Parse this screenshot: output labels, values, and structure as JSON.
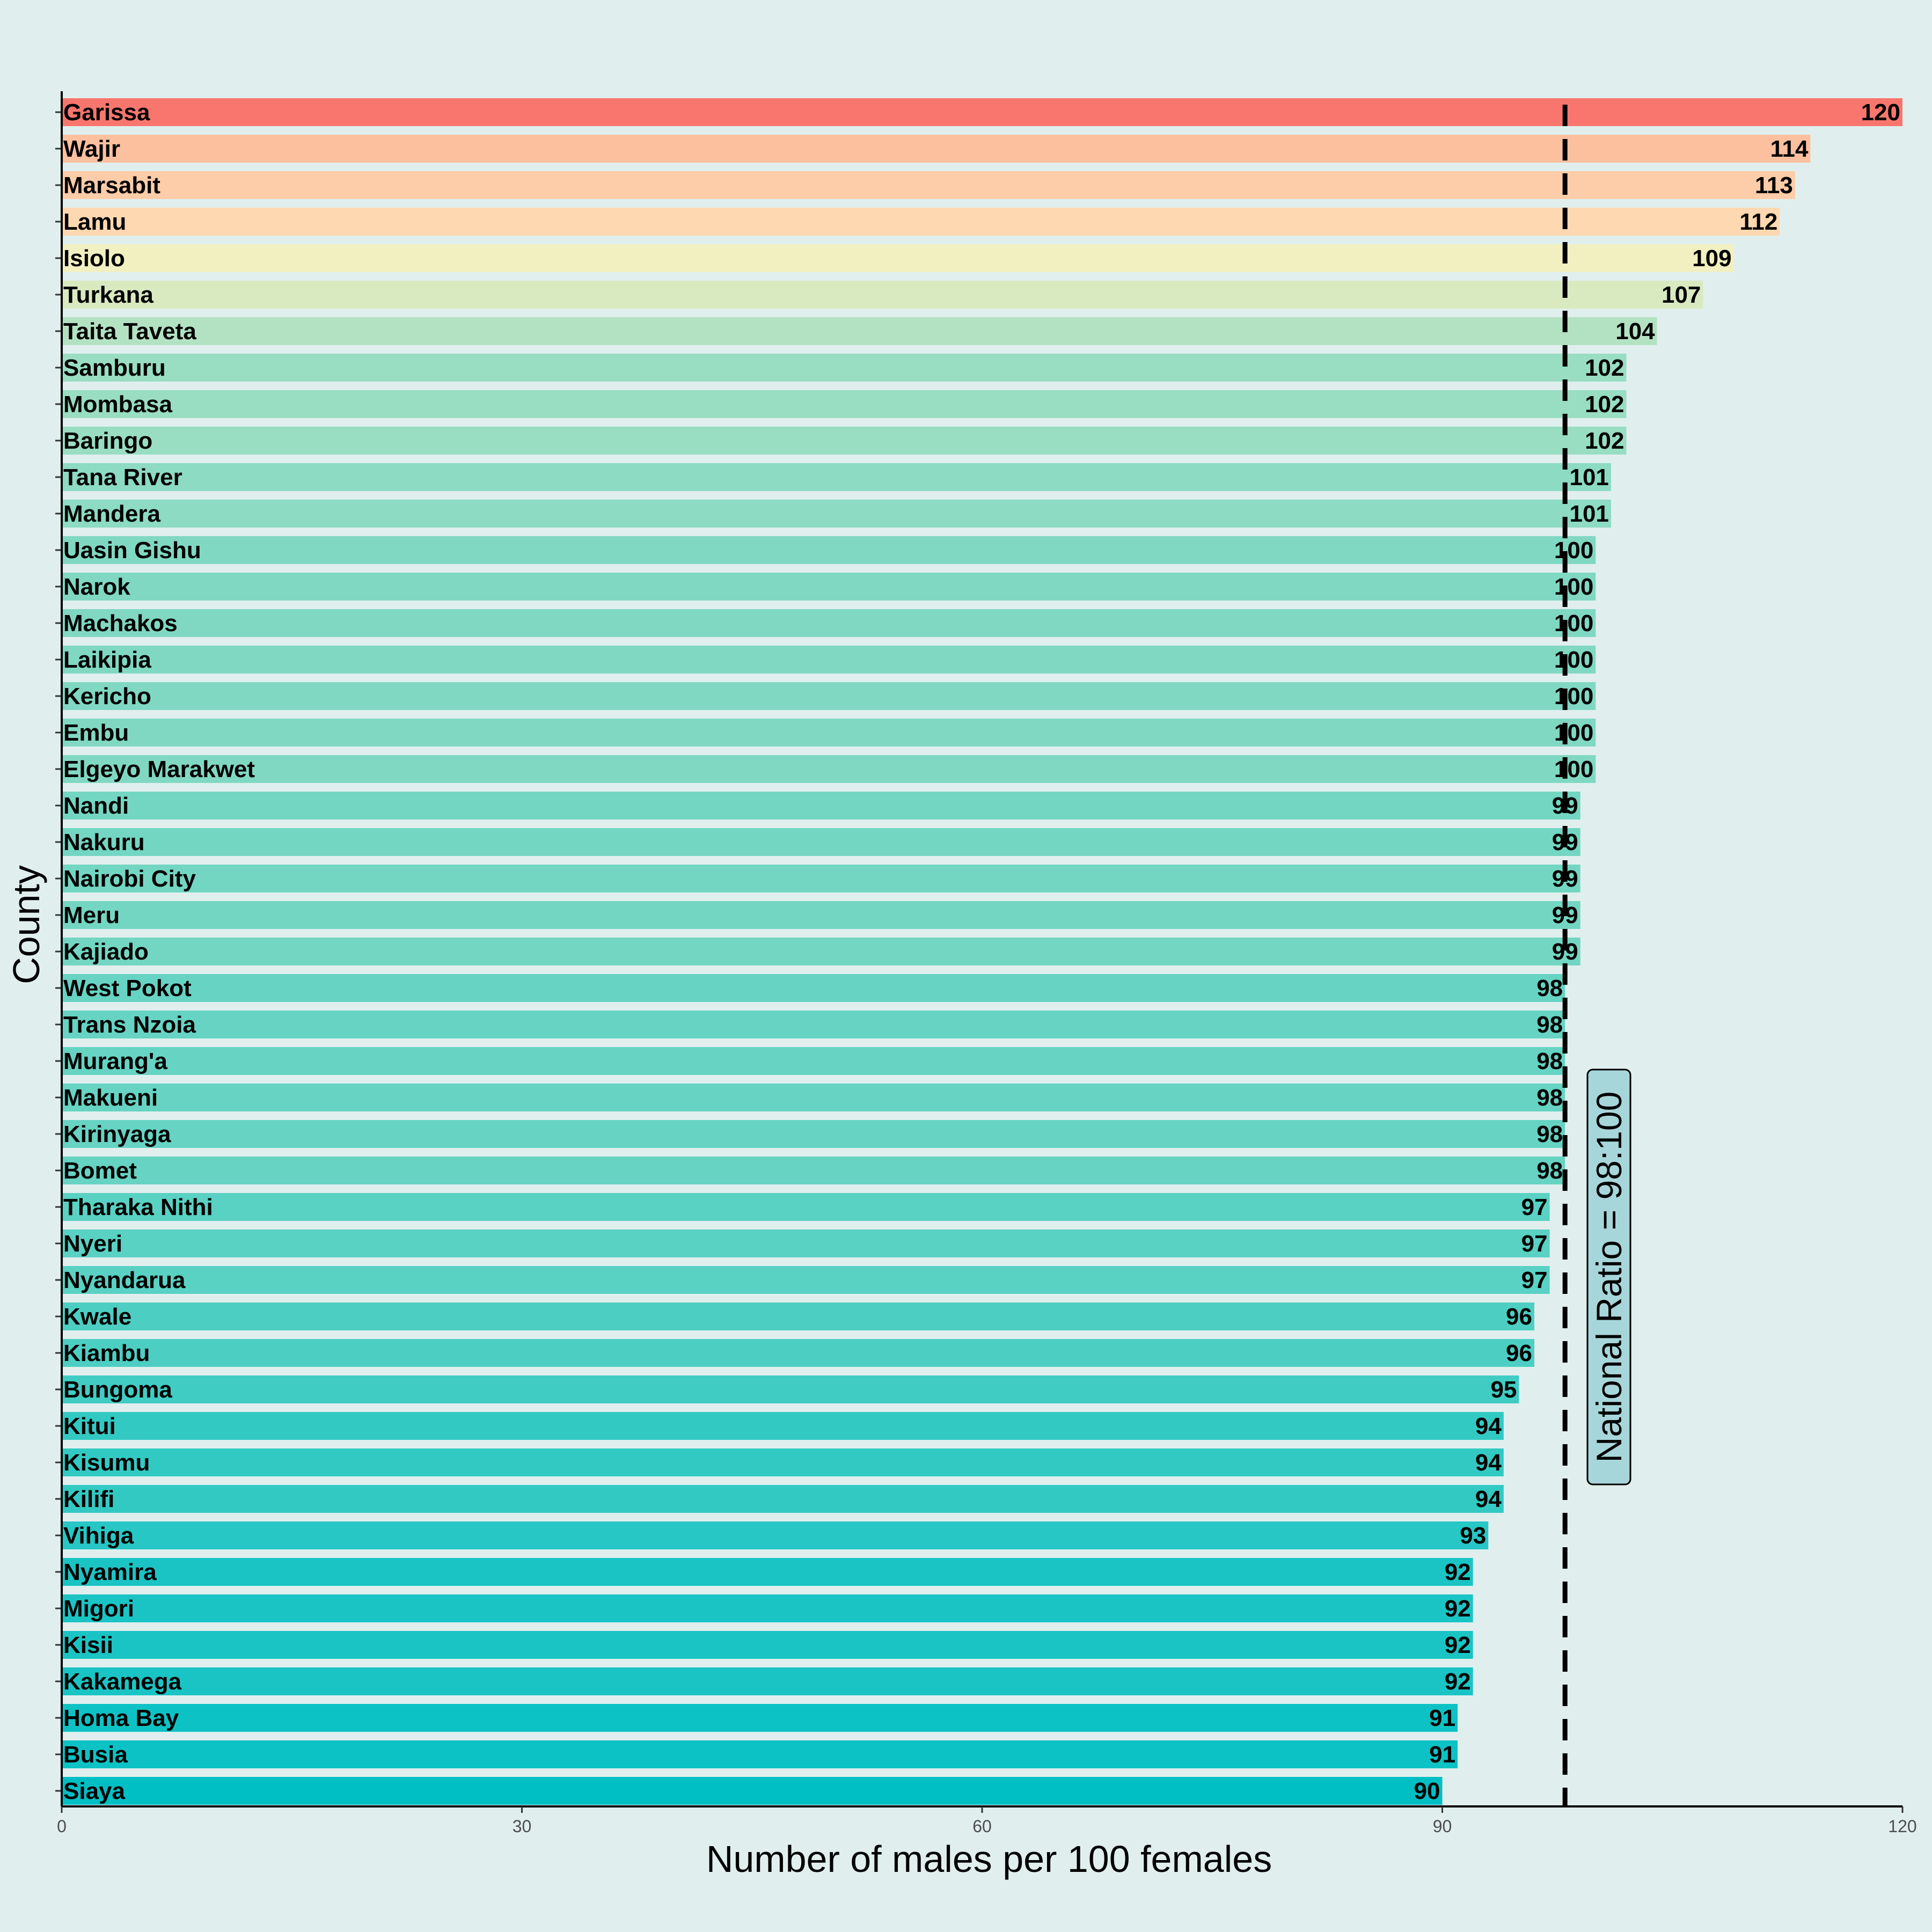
{
  "chart_data": {
    "type": "bar",
    "orientation": "horizontal",
    "xlabel": "Number of males per 100 females",
    "ylabel": "County",
    "xlim": [
      0,
      120
    ],
    "xticks": [
      0,
      30,
      60,
      90,
      120
    ],
    "grid": false,
    "legend": "none",
    "color_scale": {
      "low": "#00bfc4",
      "mid": "#fff1c1",
      "high": "#f8766d"
    },
    "reference_line": {
      "value": 98,
      "style": "dashed",
      "color": "#000000"
    },
    "annotation": "National Ratio = 98:100",
    "categories": [
      "Garissa",
      "Wajir",
      "Marsabit",
      "Lamu",
      "Isiolo",
      "Turkana",
      "Taita Taveta",
      "Samburu",
      "Mombasa",
      "Baringo",
      "Tana River",
      "Mandera",
      "Uasin Gishu",
      "Narok",
      "Machakos",
      "Laikipia",
      "Kericho",
      "Embu",
      "Elgeyo Marakwet",
      "Nandi",
      "Nakuru",
      "Nairobi City",
      "Meru",
      "Kajiado",
      "West Pokot",
      "Trans Nzoia",
      "Murang'a",
      "Makueni",
      "Kirinyaga",
      "Bomet",
      "Tharaka Nithi",
      "Nyeri",
      "Nyandarua",
      "Kwale",
      "Kiambu",
      "Bungoma",
      "Kitui",
      "Kisumu",
      "Kilifi",
      "Vihiga",
      "Nyamira",
      "Migori",
      "Kisii",
      "Kakamega",
      "Homa Bay",
      "Busia",
      "Siaya"
    ],
    "values": [
      120,
      114,
      113,
      112,
      109,
      107,
      104,
      102,
      102,
      102,
      101,
      101,
      100,
      100,
      100,
      100,
      100,
      100,
      100,
      99,
      99,
      99,
      99,
      99,
      98,
      98,
      98,
      98,
      98,
      98,
      97,
      97,
      97,
      96,
      96,
      95,
      94,
      94,
      94,
      93,
      92,
      92,
      92,
      92,
      91,
      91,
      90
    ]
  }
}
